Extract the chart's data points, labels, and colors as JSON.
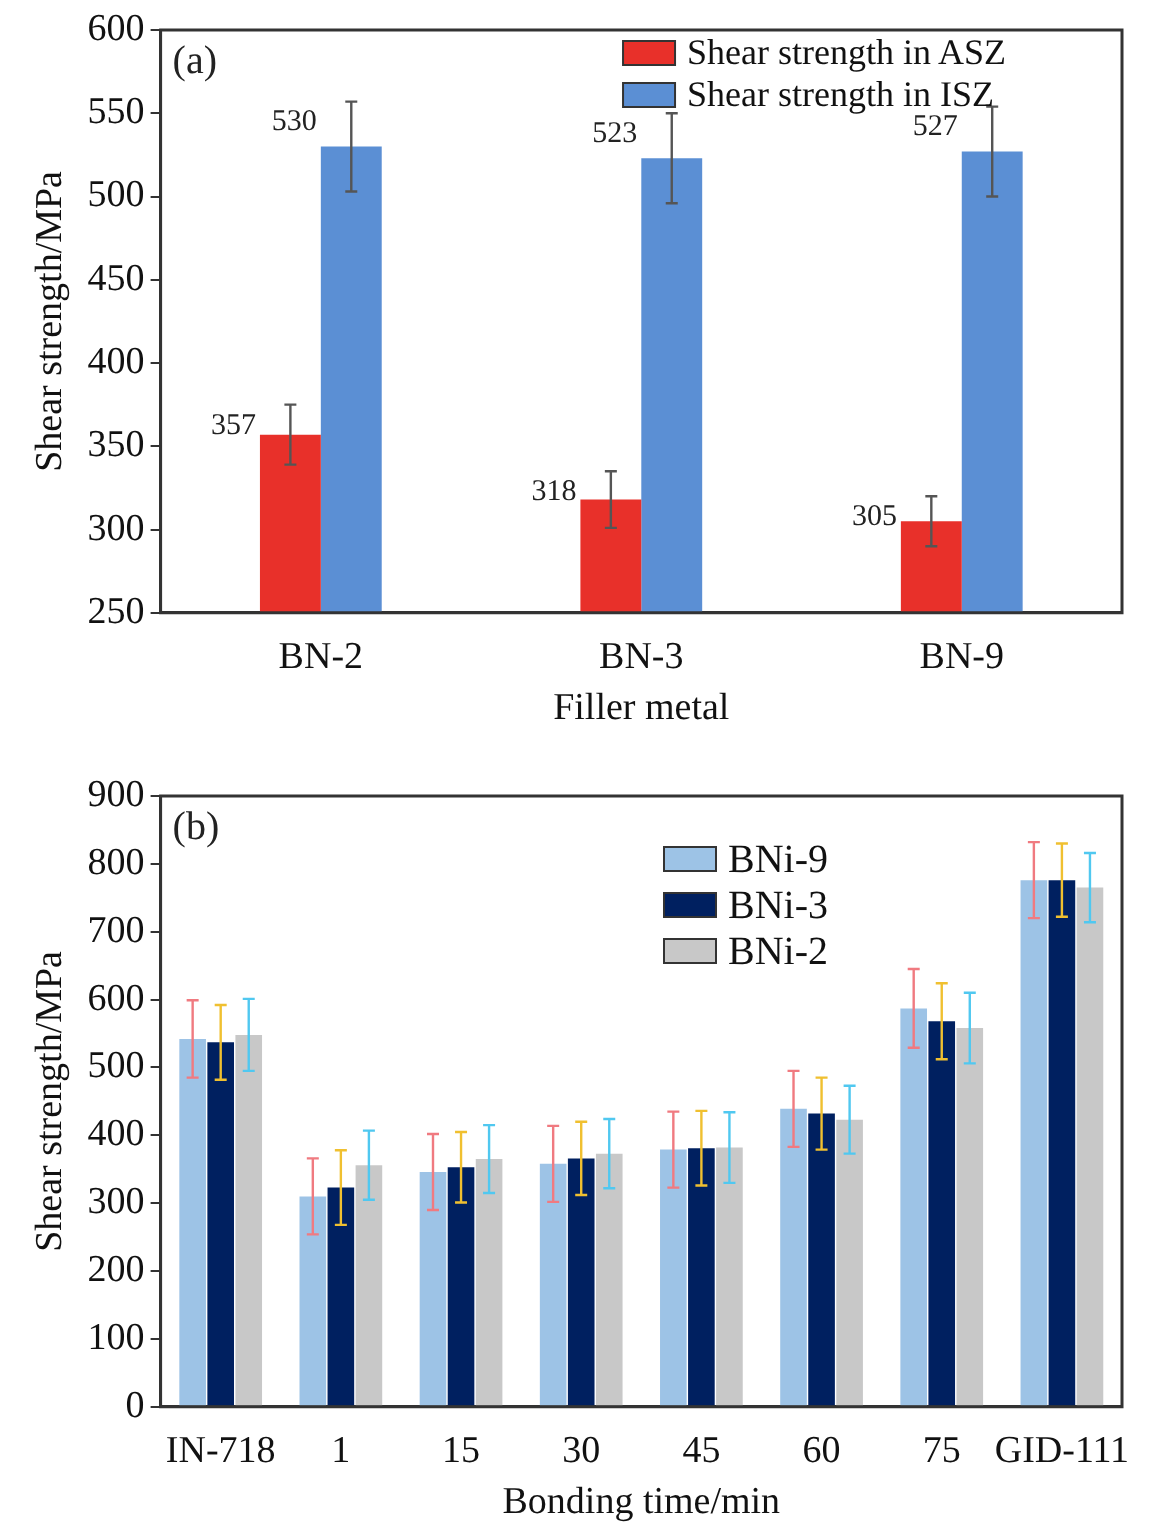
{
  "chart_data": [
    {
      "type": "bar",
      "xlabel": "Filler metal",
      "ylabel": "Shear strength/MPa",
      "categories": [
        "BN-2",
        "BN-3",
        "BN-9"
      ],
      "series": [
        {
          "name": "Shear strength in ASZ",
          "color": "#e8302a",
          "values": [
            357,
            318,
            305
          ],
          "errors": [
            18,
            17,
            15
          ]
        },
        {
          "name": "Shear strength in ISZ",
          "color": "#5b8fd4",
          "values": [
            530,
            523,
            527
          ],
          "errors": [
            27,
            27,
            27
          ]
        }
      ],
      "ylim": [
        250,
        600
      ],
      "yticks": [
        250,
        300,
        350,
        400,
        450,
        500,
        550,
        600
      ],
      "data_labels": true,
      "legend": "top right",
      "grid": false,
      "annotations": [
        "(a)"
      ]
    },
    {
      "type": "bar",
      "xlabel": "Bonding time/min",
      "ylabel": "Shear strength/MPa",
      "categories": [
        "IN-718",
        "1",
        "15",
        "30",
        "45",
        "60",
        "75",
        "GID-111"
      ],
      "series": [
        {
          "name": "BNi-9",
          "color": "#9dc3e6",
          "values": [
            542,
            310,
            346,
            358,
            379,
            439,
            587,
            776
          ],
          "errors": [
            57,
            56,
            56,
            56,
            56,
            56,
            58,
            56
          ]
        },
        {
          "name": "BNi-3",
          "color": "#002060",
          "values": [
            537,
            323,
            353,
            366,
            381,
            432,
            568,
            776
          ],
          "errors": [
            55,
            55,
            52,
            54,
            55,
            53,
            56,
            54
          ]
        },
        {
          "name": "BNi-2",
          "color": "#c8c8c8",
          "values": [
            548,
            356,
            365,
            373,
            382,
            423,
            558,
            765
          ],
          "errors": [
            53,
            51,
            50,
            51,
            52,
            50,
            52,
            51
          ]
        }
      ],
      "ylim": [
        0,
        900
      ],
      "yticks": [
        0,
        100,
        200,
        300,
        400,
        500,
        600,
        700,
        800,
        900
      ],
      "legend": "top right",
      "grid": false,
      "annotations": [
        "(b)"
      ]
    }
  ]
}
